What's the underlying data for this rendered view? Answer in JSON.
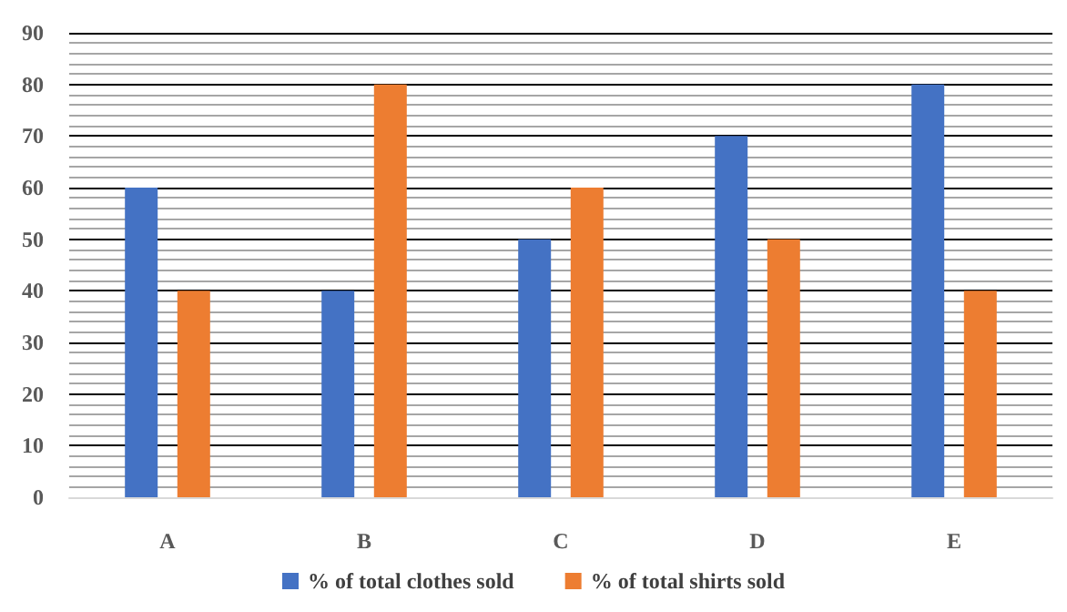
{
  "chart_data": {
    "type": "bar",
    "categories": [
      "A",
      "B",
      "C",
      "D",
      "E"
    ],
    "series": [
      {
        "name": "% of total clothes sold",
        "color": "#4472c4",
        "values": [
          60,
          40,
          50,
          70,
          80
        ]
      },
      {
        "name": "% of total shirts sold",
        "color": "#ed7d31",
        "values": [
          40,
          80,
          60,
          50,
          40
        ]
      }
    ],
    "ylim": [
      0,
      90
    ],
    "yticks": [
      0,
      10,
      20,
      30,
      40,
      50,
      60,
      70,
      80,
      90
    ],
    "grid": true,
    "legend": "bottom"
  }
}
